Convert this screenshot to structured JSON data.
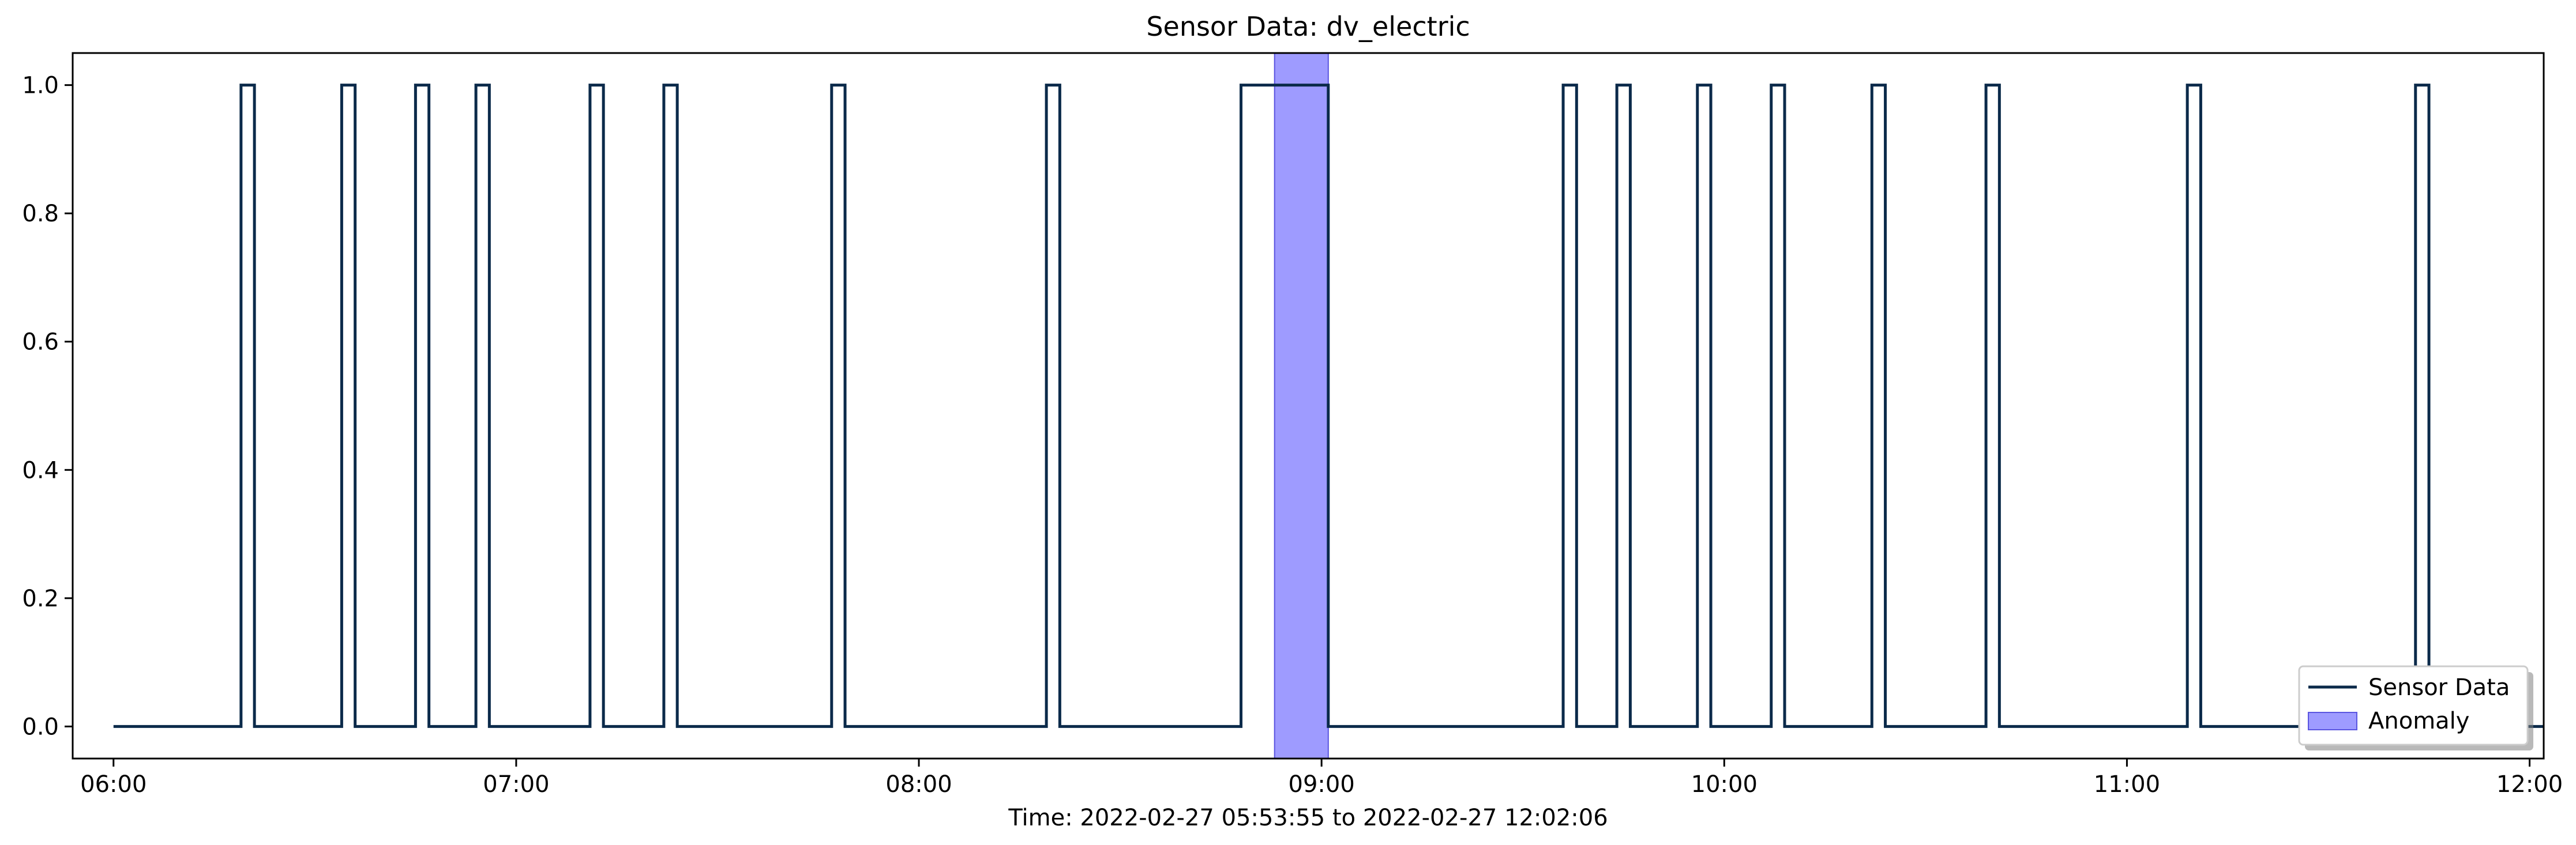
{
  "chart_data": {
    "type": "line",
    "title": "Sensor Data: dv_electric",
    "xlabel": "Time: 2022-02-27 05:53:55 to 2022-02-27 12:02:06",
    "ylabel": "",
    "xlim": [
      "2022-02-27 05:53:55",
      "2022-02-27 12:02:06"
    ],
    "ylim": [
      -0.05,
      1.05
    ],
    "x_ticks": [
      "06:00",
      "07:00",
      "08:00",
      "09:00",
      "10:00",
      "11:00",
      "12:00"
    ],
    "y_ticks": [
      "0.0",
      "0.2",
      "0.4",
      "0.6",
      "0.8",
      "1.0"
    ],
    "grid": false,
    "legend_position": "bottom-right",
    "series": [
      {
        "name": "Sensor Data",
        "color": "#0b2a4a",
        "step": "post",
        "points": [
          {
            "x": "06:00",
            "y": 0
          },
          {
            "x": "06:19",
            "y": 1
          },
          {
            "x": "06:21",
            "y": 0
          },
          {
            "x": "06:34",
            "y": 1
          },
          {
            "x": "06:36",
            "y": 0
          },
          {
            "x": "06:45",
            "y": 1
          },
          {
            "x": "06:47",
            "y": 0
          },
          {
            "x": "06:54",
            "y": 1
          },
          {
            "x": "06:56",
            "y": 0
          },
          {
            "x": "07:11",
            "y": 1
          },
          {
            "x": "07:13",
            "y": 0
          },
          {
            "x": "07:22",
            "y": 1
          },
          {
            "x": "07:24",
            "y": 0
          },
          {
            "x": "07:47",
            "y": 1
          },
          {
            "x": "07:49",
            "y": 0
          },
          {
            "x": "08:19",
            "y": 1
          },
          {
            "x": "08:21",
            "y": 0
          },
          {
            "x": "08:48",
            "y": 1
          },
          {
            "x": "09:01",
            "y": 0
          },
          {
            "x": "09:36",
            "y": 1
          },
          {
            "x": "09:38",
            "y": 0
          },
          {
            "x": "09:44",
            "y": 1
          },
          {
            "x": "09:46",
            "y": 0
          },
          {
            "x": "09:56",
            "y": 1
          },
          {
            "x": "09:58",
            "y": 0
          },
          {
            "x": "10:07",
            "y": 1
          },
          {
            "x": "10:09",
            "y": 0
          },
          {
            "x": "10:22",
            "y": 1
          },
          {
            "x": "10:24",
            "y": 0
          },
          {
            "x": "10:39",
            "y": 1
          },
          {
            "x": "10:41",
            "y": 0
          },
          {
            "x": "11:09",
            "y": 1
          },
          {
            "x": "11:11",
            "y": 0
          },
          {
            "x": "11:43",
            "y": 1
          },
          {
            "x": "11:45",
            "y": 0
          },
          {
            "x": "12:02",
            "y": 0
          }
        ]
      }
    ],
    "anomalies": [
      {
        "name": "Anomaly",
        "color": "#9e9bff",
        "edge_color": "#5a55e0",
        "x_start": "08:53",
        "x_end": "09:01"
      }
    ]
  }
}
